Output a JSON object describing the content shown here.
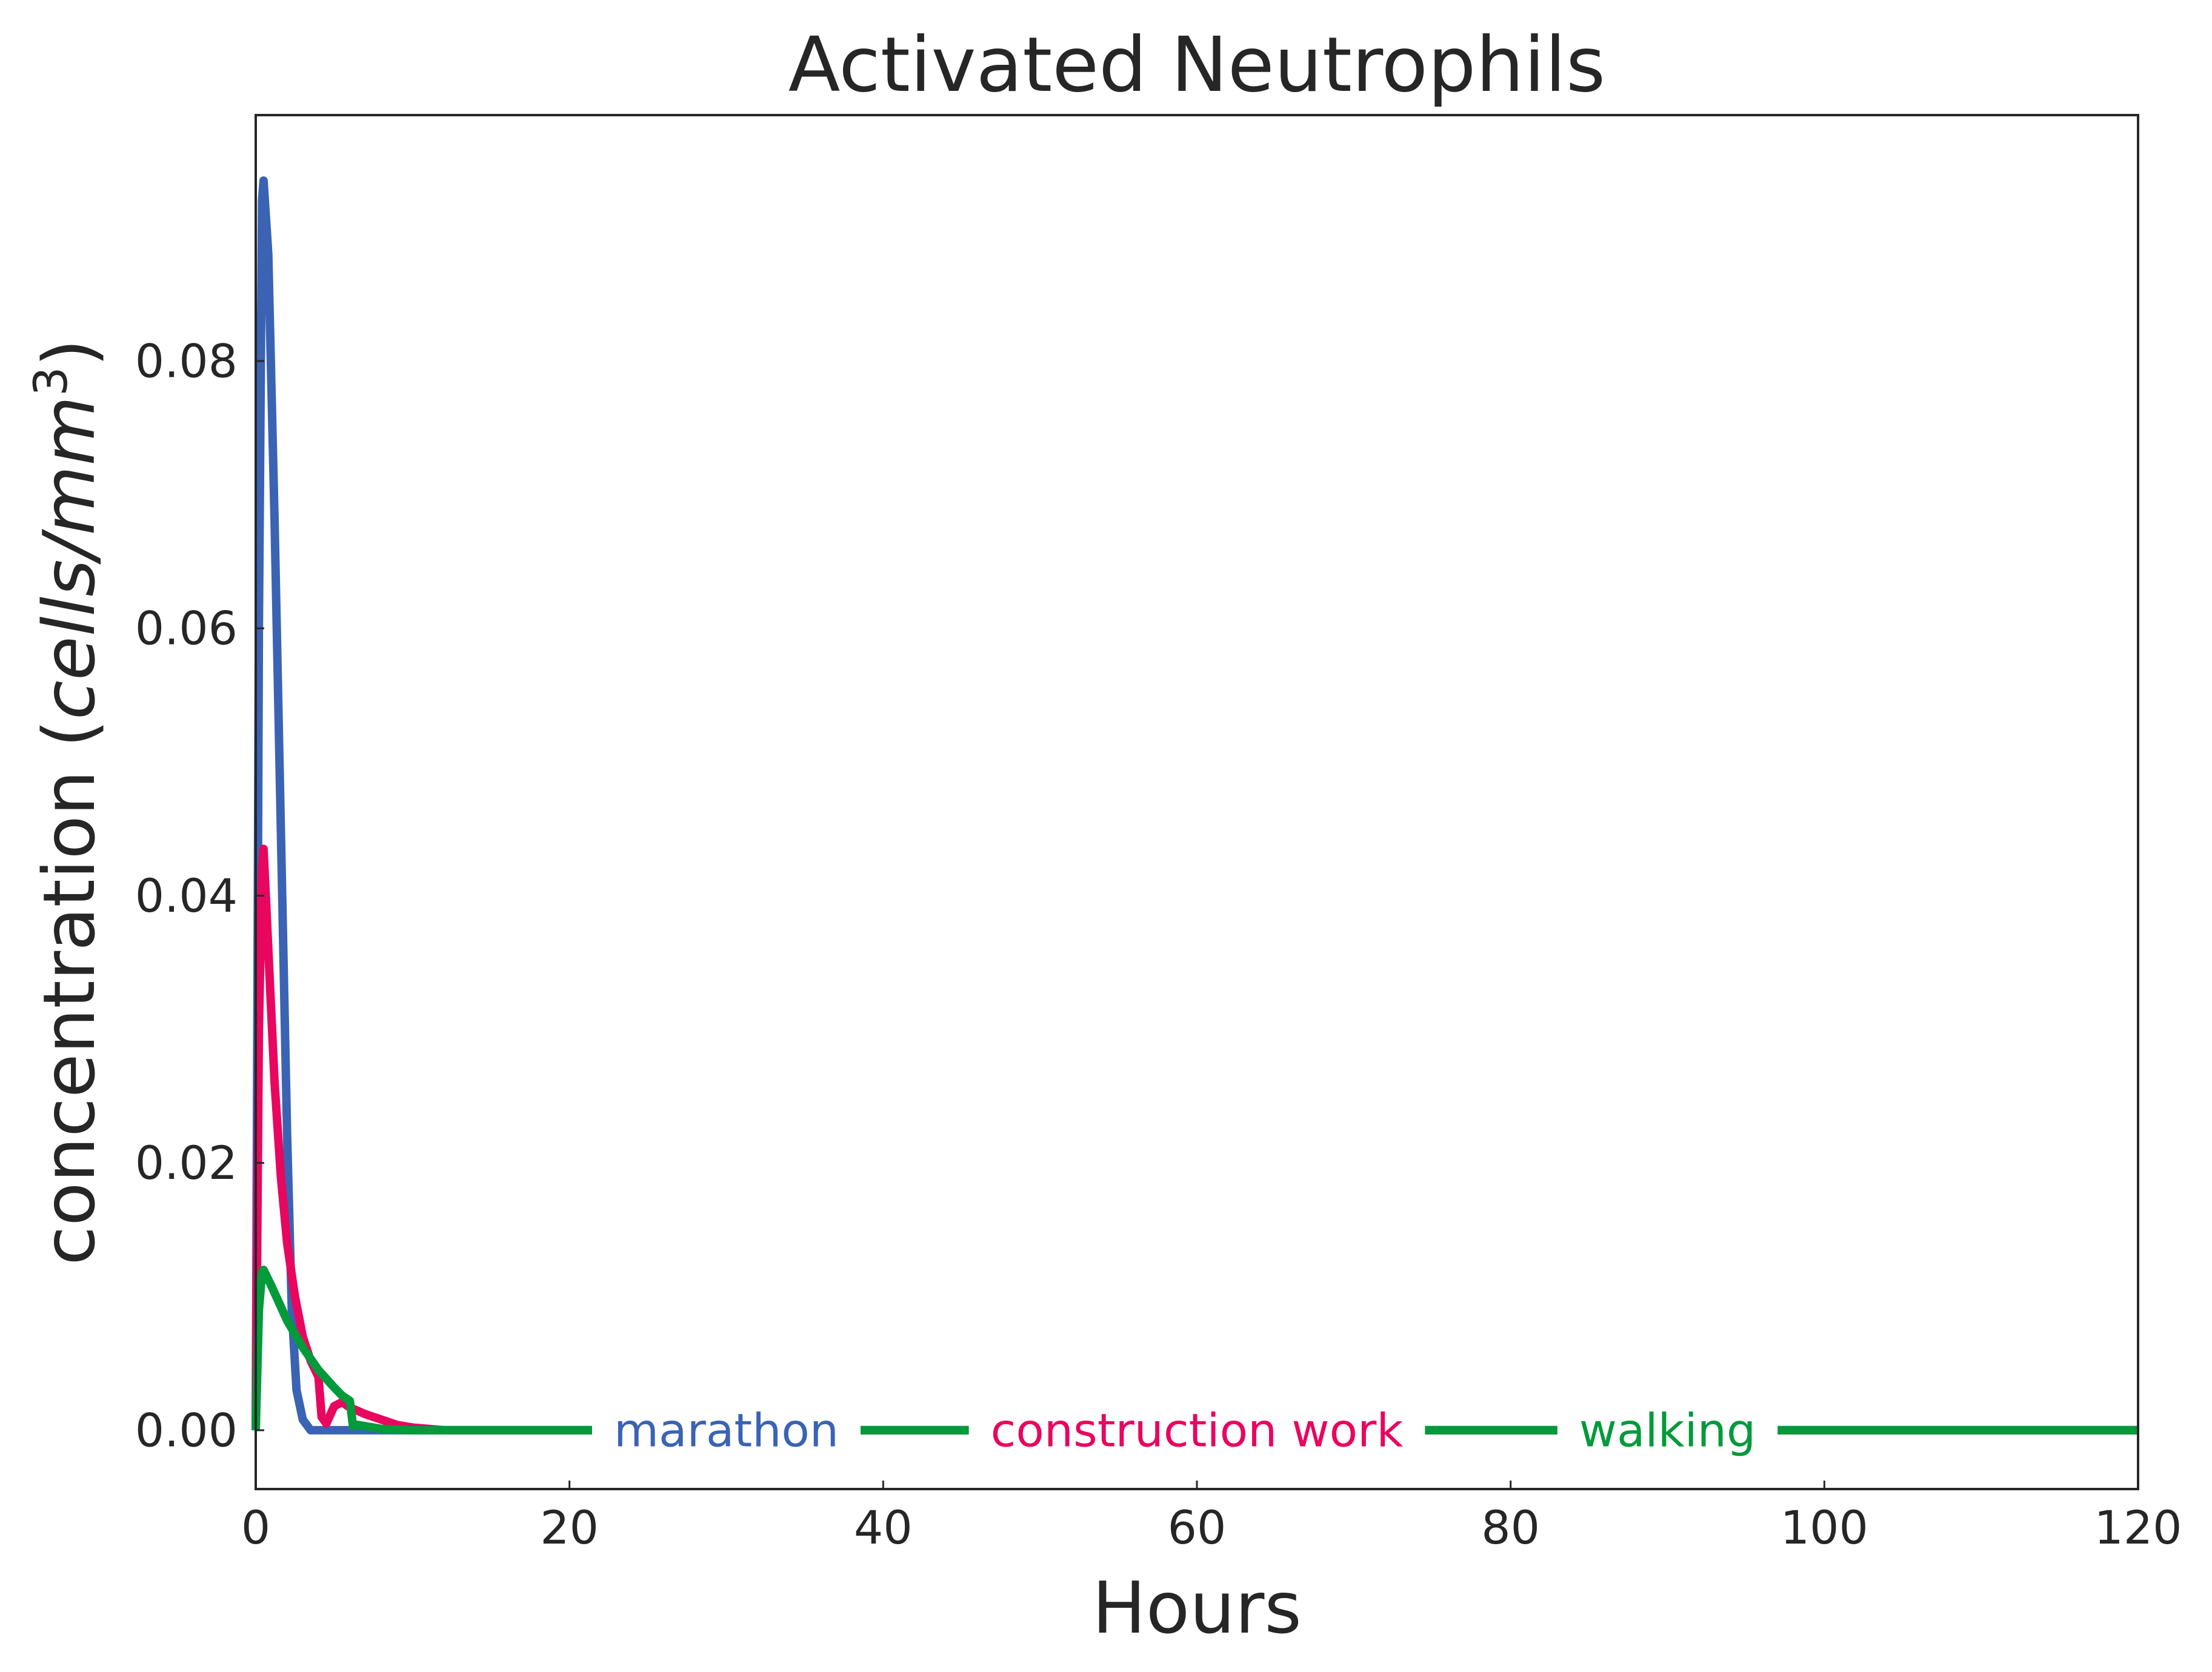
{
  "chart_data": {
    "type": "line",
    "title": "Activated Neutrophils",
    "xlabel": "Hours",
    "ylabel": {
      "prefix": "concentration (",
      "italic": "cells/mm",
      "superscript": "3",
      "suffix": ")"
    },
    "xlim": [
      0,
      120
    ],
    "ylim": [
      -0.0044,
      0.0984
    ],
    "x_ticks": [
      0,
      20,
      40,
      60,
      80,
      100,
      120
    ],
    "x_tick_labels": [
      "0",
      "20",
      "40",
      "60",
      "80",
      "100",
      "120"
    ],
    "y_ticks": [
      0.0,
      0.02,
      0.04,
      0.06,
      0.08
    ],
    "y_tick_labels": [
      "0.00",
      "0.02",
      "0.04",
      "0.06",
      "0.08"
    ],
    "grid": false,
    "legend": "inline labels on the curves",
    "series": [
      {
        "name": "marathon",
        "color": "#3a63b4",
        "label_at_x": 30,
        "x": [
          0,
          0.2,
          0.4,
          0.5,
          0.8,
          1.2,
          1.6,
          2.0,
          2.3,
          2.6,
          3.0,
          3.5,
          5,
          10,
          20,
          40,
          60,
          80,
          100,
          120
        ],
        "y": [
          0,
          0.06,
          0.092,
          0.0935,
          0.088,
          0.068,
          0.045,
          0.022,
          0.009,
          0.003,
          0.0008,
          0.0,
          0.0,
          0.0,
          0.0,
          0.0,
          0.0,
          0.0,
          0.0,
          0.0
        ]
      },
      {
        "name": "construction work",
        "color": "#e8065f",
        "label_at_x": 60,
        "x": [
          0,
          0.2,
          0.4,
          0.5,
          0.8,
          1.2,
          1.6,
          2.0,
          2.5,
          3.0,
          3.5,
          4.0,
          4.2,
          4.5,
          5.0,
          5.5,
          6.0,
          7.0,
          8.0,
          9.0,
          10.0,
          12,
          20,
          40,
          60,
          80,
          100,
          120
        ],
        "y": [
          0,
          0.03,
          0.042,
          0.0435,
          0.036,
          0.026,
          0.019,
          0.014,
          0.01,
          0.007,
          0.0052,
          0.004,
          0.001,
          0.0005,
          0.0018,
          0.0021,
          0.0017,
          0.0012,
          0.0008,
          0.0004,
          0.0002,
          0.0,
          0.0,
          0.0,
          0.0,
          0.0,
          0.0,
          0.0
        ]
      },
      {
        "name": "walking",
        "color": "#029a3a",
        "label_at_x": 90,
        "x": [
          0,
          0.2,
          0.4,
          0.5,
          1.0,
          1.5,
          2.0,
          3.0,
          4.0,
          5.0,
          5.5,
          6.0,
          6.2,
          6.5,
          7.0,
          8,
          10,
          20,
          40,
          60,
          80,
          100,
          120
        ],
        "y": [
          0,
          0.009,
          0.0118,
          0.012,
          0.0108,
          0.0095,
          0.0082,
          0.0062,
          0.0045,
          0.0032,
          0.0026,
          0.0022,
          0.0003,
          0.0004,
          0.0003,
          0.0001,
          0.0,
          0.0,
          0.0,
          0.0,
          0.0,
          0.0,
          0.0
        ]
      }
    ]
  }
}
